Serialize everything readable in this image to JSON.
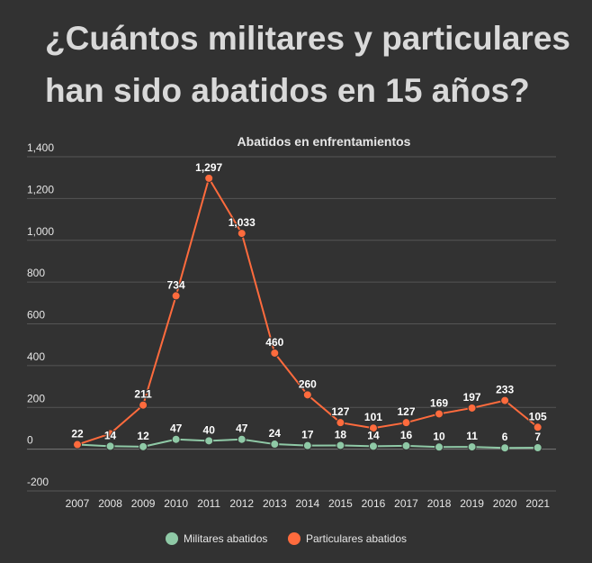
{
  "headline": {
    "line1": "¿Cuántos militares y particulares",
    "line2": "han sido abatidos en 15 años?"
  },
  "chart_data": {
    "type": "line",
    "title": "Abatidos en enfrentamientos",
    "xlabel": "",
    "ylabel": "",
    "categories": [
      "2007",
      "2008",
      "2009",
      "2010",
      "2011",
      "2012",
      "2013",
      "2014",
      "2015",
      "2016",
      "2017",
      "2018",
      "2019",
      "2020",
      "2021"
    ],
    "ylim": [
      -200,
      1400
    ],
    "yticks": [
      -200,
      0,
      200,
      400,
      600,
      800,
      1000,
      1200,
      1400
    ],
    "ytick_labels": [
      "-200",
      "0",
      "200",
      "400",
      "600",
      "800",
      "1,000",
      "1,200",
      "1,400"
    ],
    "grid": true,
    "legend_position": "bottom",
    "series": [
      {
        "name": "Militares abatidos",
        "color": "#8fc9a6",
        "values": [
          22,
          14,
          12,
          47,
          40,
          47,
          24,
          17,
          18,
          14,
          16,
          10,
          11,
          6,
          7
        ]
      },
      {
        "name": "Particulares abatidos",
        "color": "#ff6b3d",
        "values": [
          22,
          74,
          211,
          734,
          1297,
          1033,
          460,
          260,
          127,
          101,
          127,
          169,
          197,
          233,
          105
        ]
      }
    ],
    "data_labels": [
      [
        "22",
        "14",
        "12",
        "47",
        "40",
        "47",
        "24",
        "17",
        "18",
        "14",
        "16",
        "10",
        "11",
        "6",
        "7"
      ],
      [
        "",
        "",
        "211",
        "734",
        "1,297",
        "1,033",
        "460",
        "260",
        "127",
        "101",
        "127",
        "169",
        "197",
        "233",
        "105"
      ]
    ]
  }
}
